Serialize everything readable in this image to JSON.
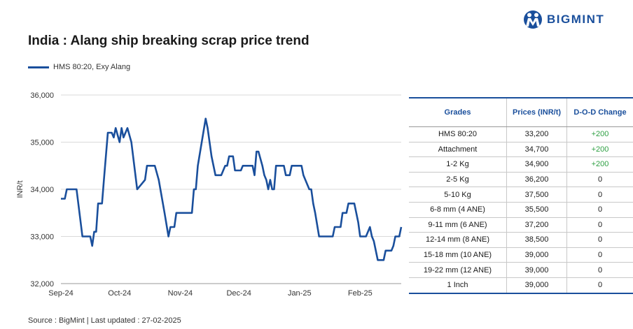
{
  "brand": {
    "name": "BIGMINT",
    "logo_icon": "bigmint-logo-icon",
    "color": "#1a4f9c"
  },
  "footer": "Source : BigMint | Last updated : 27-02-2025",
  "table": {
    "headers": [
      "Grades",
      "Prices (INR/t)",
      "D-O-D Change"
    ],
    "positive_color": "#2ea043",
    "rows": [
      [
        "HMS 80:20",
        "33,200",
        "+200"
      ],
      [
        "Attachment",
        "34,700",
        "+200"
      ],
      [
        "1-2 Kg",
        "34,900",
        "+200"
      ],
      [
        "2-5 Kg",
        "36,200",
        "0"
      ],
      [
        "5-10 Kg",
        "37,500",
        "0"
      ],
      [
        "6-8 mm (4 ANE)",
        "35,500",
        "0"
      ],
      [
        "9-11 mm (6 ANE)",
        "37,200",
        "0"
      ],
      [
        "12-14 mm (8 ANE)",
        "38,500",
        "0"
      ],
      [
        "15-18 mm (10 ANE)",
        "39,000",
        "0"
      ],
      [
        "19-22 mm (12 ANE)",
        "39,000",
        "0"
      ],
      [
        "1 Inch",
        "39,000",
        "0"
      ]
    ]
  },
  "chart_data": {
    "type": "line",
    "title": "India : Alang ship breaking scrap price trend",
    "ylabel": "INR/t",
    "xlabel": "",
    "ylim": [
      32000,
      36000
    ],
    "yticks": [
      32000,
      33000,
      34000,
      35000,
      36000
    ],
    "ytick_labels": [
      "32,000",
      "33,000",
      "34,000",
      "35,000",
      "36,000"
    ],
    "xtick_labels": [
      "Sep-24",
      "Oct-24",
      "Nov-24",
      "Dec-24",
      "Jan-25",
      "Feb-25"
    ],
    "grid": true,
    "legend": "top-left",
    "series": [
      {
        "name": "HMS 80:20, Exy Alang",
        "color": "#1a4f9c",
        "points": [
          [
            "2024-09-01",
            33800
          ],
          [
            "2024-09-03",
            33800
          ],
          [
            "2024-09-04",
            34000
          ],
          [
            "2024-09-09",
            34000
          ],
          [
            "2024-09-12",
            33000
          ],
          [
            "2024-09-16",
            33000
          ],
          [
            "2024-09-17",
            32800
          ],
          [
            "2024-09-18",
            33100
          ],
          [
            "2024-09-19",
            33100
          ],
          [
            "2024-09-20",
            33700
          ],
          [
            "2024-09-22",
            33700
          ],
          [
            "2024-09-23",
            34200
          ],
          [
            "2024-09-25",
            35200
          ],
          [
            "2024-09-27",
            35200
          ],
          [
            "2024-09-28",
            35100
          ],
          [
            "2024-09-29",
            35300
          ],
          [
            "2024-10-01",
            35000
          ],
          [
            "2024-10-02",
            35300
          ],
          [
            "2024-10-03",
            35100
          ],
          [
            "2024-10-05",
            35300
          ],
          [
            "2024-10-07",
            35000
          ],
          [
            "2024-10-10",
            34000
          ],
          [
            "2024-10-12",
            34100
          ],
          [
            "2024-10-14",
            34200
          ],
          [
            "2024-10-15",
            34500
          ],
          [
            "2024-10-19",
            34500
          ],
          [
            "2024-10-21",
            34200
          ],
          [
            "2024-10-24",
            33500
          ],
          [
            "2024-10-26",
            33000
          ],
          [
            "2024-10-27",
            33200
          ],
          [
            "2024-10-29",
            33200
          ],
          [
            "2024-10-30",
            33500
          ],
          [
            "2024-11-07",
            33500
          ],
          [
            "2024-11-08",
            34000
          ],
          [
            "2024-11-09",
            34000
          ],
          [
            "2024-11-10",
            34500
          ],
          [
            "2024-11-12",
            35000
          ],
          [
            "2024-11-14",
            35500
          ],
          [
            "2024-11-15",
            35300
          ],
          [
            "2024-11-17",
            34700
          ],
          [
            "2024-11-18",
            34500
          ],
          [
            "2024-11-19",
            34300
          ],
          [
            "2024-11-22",
            34300
          ],
          [
            "2024-11-24",
            34500
          ],
          [
            "2024-11-25",
            34500
          ],
          [
            "2024-11-26",
            34700
          ],
          [
            "2024-11-28",
            34700
          ],
          [
            "2024-11-29",
            34400
          ],
          [
            "2024-12-02",
            34400
          ],
          [
            "2024-12-03",
            34500
          ],
          [
            "2024-12-08",
            34500
          ],
          [
            "2024-12-09",
            34300
          ],
          [
            "2024-12-10",
            34800
          ],
          [
            "2024-12-11",
            34800
          ],
          [
            "2024-12-13",
            34500
          ],
          [
            "2024-12-14",
            34300
          ],
          [
            "2024-12-15",
            34200
          ],
          [
            "2024-12-16",
            34000
          ],
          [
            "2024-12-17",
            34200
          ],
          [
            "2024-12-18",
            34000
          ],
          [
            "2024-12-19",
            34000
          ],
          [
            "2024-12-20",
            34500
          ],
          [
            "2024-12-24",
            34500
          ],
          [
            "2024-12-25",
            34300
          ],
          [
            "2024-12-27",
            34300
          ],
          [
            "2024-12-28",
            34500
          ],
          [
            "2025-01-02",
            34500
          ],
          [
            "2025-01-03",
            34300
          ],
          [
            "2025-01-06",
            34000
          ],
          [
            "2025-01-07",
            34000
          ],
          [
            "2025-01-08",
            33700
          ],
          [
            "2025-01-09",
            33500
          ],
          [
            "2025-01-11",
            33000
          ],
          [
            "2025-01-18",
            33000
          ],
          [
            "2025-01-19",
            33200
          ],
          [
            "2025-01-22",
            33200
          ],
          [
            "2025-01-23",
            33500
          ],
          [
            "2025-01-25",
            33500
          ],
          [
            "2025-01-26",
            33700
          ],
          [
            "2025-01-29",
            33700
          ],
          [
            "2025-01-31",
            33300
          ],
          [
            "2025-02-01",
            33000
          ],
          [
            "2025-02-04",
            33000
          ],
          [
            "2025-02-06",
            33200
          ],
          [
            "2025-02-07",
            33000
          ],
          [
            "2025-02-08",
            32900
          ],
          [
            "2025-02-10",
            32500
          ],
          [
            "2025-02-13",
            32500
          ],
          [
            "2025-02-14",
            32700
          ],
          [
            "2025-02-17",
            32700
          ],
          [
            "2025-02-18",
            32800
          ],
          [
            "2025-02-19",
            33000
          ],
          [
            "2025-02-21",
            33000
          ],
          [
            "2025-02-22",
            33200
          ]
        ]
      }
    ]
  }
}
